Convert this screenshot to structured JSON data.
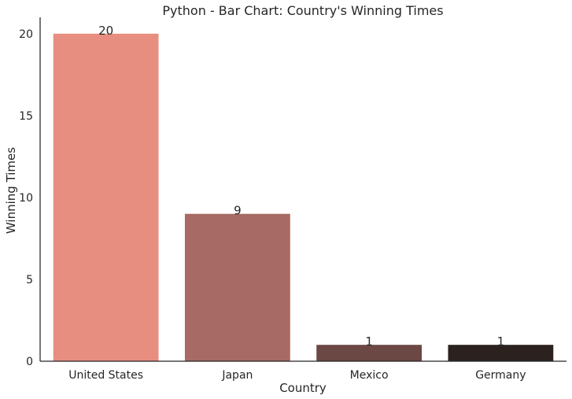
{
  "chart_data": {
    "type": "bar",
    "title": "Python - Bar Chart: Country's Winning Times",
    "xlabel": "Country",
    "ylabel": "Winning Times",
    "categories": [
      "United States",
      "Japan",
      "Mexico",
      "Germany"
    ],
    "values": [
      20,
      9,
      1,
      1
    ],
    "data_labels": [
      "20",
      "9",
      "1",
      "1"
    ],
    "colors": [
      "#e88e80",
      "#a86a64",
      "#6b4844",
      "#2b2220"
    ],
    "ylim": [
      0,
      21
    ],
    "yticks": [
      0,
      5,
      10,
      15,
      20
    ],
    "grid": false,
    "legend": "none"
  }
}
